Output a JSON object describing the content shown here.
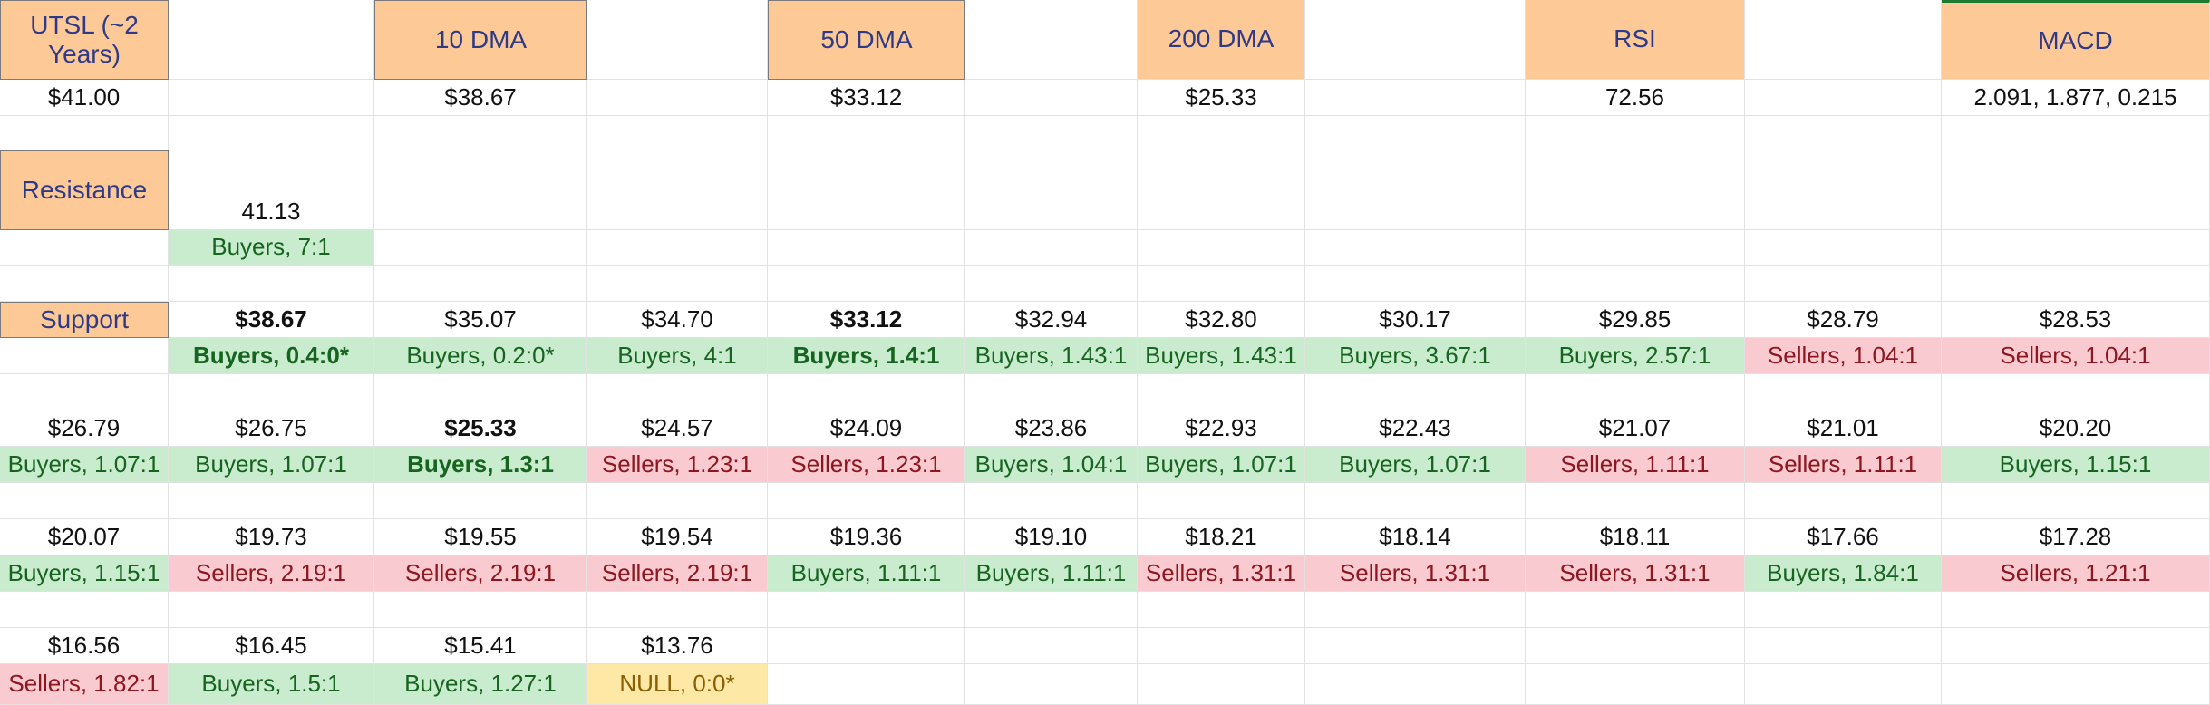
{
  "header": {
    "col0": "UTSL (~2 Years)",
    "col2": "10 DMA",
    "col4": "50 DMA",
    "col6": "200 DMA",
    "col8": "RSI",
    "col10": "MACD"
  },
  "indicator_values": {
    "price": "$41.00",
    "dma10": "$38.67",
    "dma50": "$33.12",
    "dma200": "$25.33",
    "rsi": "72.56",
    "macd": "2.091, 1.877, 0.215"
  },
  "resistance": {
    "label": "Resistance",
    "price": "41.13",
    "ratio": "Buyers, 7:1"
  },
  "support_label": "Support",
  "support_rows": [
    {
      "prices": [
        "$38.67",
        "$35.07",
        "$34.70",
        "$33.12",
        "$32.94",
        "$32.80",
        "$30.17",
        "$29.85",
        "$28.79",
        "$28.53"
      ],
      "ratios": [
        "Buyers, 0.4:0*",
        "Buyers, 0.2:0*",
        "Buyers, 4:1",
        "Buyers, 1.4:1",
        "Buyers, 1.43:1",
        "Buyers, 1.43:1",
        "Buyers, 3.67:1",
        "Buyers, 2.57:1",
        "Sellers, 1.04:1",
        "Sellers, 1.04:1"
      ]
    },
    {
      "prices": [
        "$26.79",
        "$26.75",
        "$25.33",
        "$24.57",
        "$24.09",
        "$23.86",
        "$22.93",
        "$22.43",
        "$21.07",
        "$21.01",
        "$20.20"
      ],
      "ratios": [
        "Buyers, 1.07:1",
        "Buyers, 1.07:1",
        "Buyers, 1.3:1",
        "Sellers, 1.23:1",
        "Sellers, 1.23:1",
        "Buyers, 1.04:1",
        "Buyers, 1.07:1",
        "Buyers, 1.07:1",
        "Sellers, 1.11:1",
        "Sellers, 1.11:1",
        "Buyers, 1.15:1"
      ]
    },
    {
      "prices": [
        "$20.07",
        "$19.73",
        "$19.55",
        "$19.54",
        "$19.36",
        "$19.10",
        "$18.21",
        "$18.14",
        "$18.11",
        "$17.66",
        "$17.28"
      ],
      "ratios": [
        "Buyers, 1.15:1",
        "Sellers, 2.19:1",
        "Sellers, 2.19:1",
        "Sellers, 2.19:1",
        "Buyers, 1.11:1",
        "Buyers, 1.11:1",
        "Sellers, 1.31:1",
        "Sellers, 1.31:1",
        "Sellers, 1.31:1",
        "Buyers, 1.84:1",
        "Sellers, 1.21:1"
      ]
    },
    {
      "prices": [
        "$16.56",
        "$16.45",
        "$15.41",
        "$13.76"
      ],
      "ratios": [
        "Sellers, 1.82:1",
        "Buyers, 1.5:1",
        "Buyers, 1.27:1",
        "NULL, 0:0*"
      ]
    }
  ],
  "colors": {
    "header_bg": "#fcc997",
    "header_text": "#2e3a87",
    "buyers_bg": "#c9eccf",
    "buyers_text": "#16641f",
    "sellers_bg": "#f9cbd0",
    "sellers_text": "#8e1620",
    "null_bg": "#fde9a5",
    "null_text": "#8a5d00"
  }
}
